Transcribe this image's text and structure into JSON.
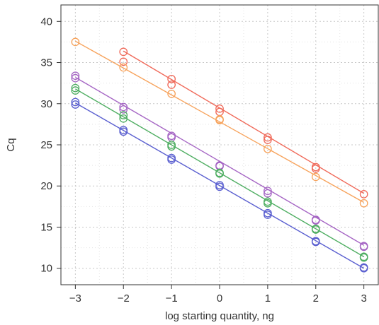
{
  "chart_data": {
    "type": "scatter",
    "xlabel": "log starting quantity, ng",
    "ylabel": "Cq",
    "xlim": [
      -3.3,
      3.3
    ],
    "ylim": [
      8,
      42
    ],
    "x_ticks": [
      -3,
      -2,
      -1,
      0,
      1,
      2,
      3
    ],
    "x_tick_labels": [
      "−3",
      "−2",
      "−1",
      "0",
      "1",
      "2",
      "3"
    ],
    "y_ticks": [
      10,
      15,
      20,
      25,
      30,
      35,
      40
    ],
    "y_tick_labels": [
      "10",
      "15",
      "20",
      "25",
      "30",
      "35",
      "40"
    ],
    "grid": true,
    "legend": "none",
    "series": [
      {
        "color": "#f06a5a",
        "fit": {
          "x": [
            -2,
            3
          ],
          "y": [
            36.4,
            19.1
          ]
        },
        "points": [
          {
            "x": -2,
            "y": 36.3
          },
          {
            "x": -2,
            "y": 35.1
          },
          {
            "x": -1,
            "y": 33.0
          },
          {
            "x": -1,
            "y": 32.3
          },
          {
            "x": 0,
            "y": 29.4
          },
          {
            "x": 0,
            "y": 29.0
          },
          {
            "x": 1,
            "y": 25.9
          },
          {
            "x": 1,
            "y": 25.6
          },
          {
            "x": 2,
            "y": 22.3
          },
          {
            "x": 2,
            "y": 22.1
          },
          {
            "x": 3,
            "y": 19.0
          }
        ]
      },
      {
        "color": "#f7a35c",
        "fit": {
          "x": [
            -3,
            3
          ],
          "y": [
            37.6,
            18.0
          ]
        },
        "points": [
          {
            "x": -3,
            "y": 37.5
          },
          {
            "x": -2,
            "y": 34.4
          },
          {
            "x": -1,
            "y": 31.2
          },
          {
            "x": 0,
            "y": 28.1
          },
          {
            "x": 0,
            "y": 28.0
          },
          {
            "x": 1,
            "y": 24.5
          },
          {
            "x": 2,
            "y": 21.1
          },
          {
            "x": 3,
            "y": 17.9
          }
        ]
      },
      {
        "color": "#a565c4",
        "fit": {
          "x": [
            -3,
            3
          ],
          "y": [
            33.2,
            12.8
          ]
        },
        "points": [
          {
            "x": -3,
            "y": 33.4
          },
          {
            "x": -3,
            "y": 33.1
          },
          {
            "x": -2,
            "y": 29.6
          },
          {
            "x": -2,
            "y": 29.3
          },
          {
            "x": -1,
            "y": 26.1
          },
          {
            "x": -1,
            "y": 25.9
          },
          {
            "x": 0,
            "y": 22.5
          },
          {
            "x": 0,
            "y": 22.4
          },
          {
            "x": 1,
            "y": 19.4
          },
          {
            "x": 1,
            "y": 19.1
          },
          {
            "x": 2,
            "y": 15.9
          },
          {
            "x": 2,
            "y": 15.8
          },
          {
            "x": 3,
            "y": 12.7
          },
          {
            "x": 3,
            "y": 12.6
          }
        ]
      },
      {
        "color": "#4fae62",
        "fit": {
          "x": [
            -3,
            3
          ],
          "y": [
            31.8,
            11.4
          ]
        },
        "points": [
          {
            "x": -3,
            "y": 31.9
          },
          {
            "x": -3,
            "y": 31.6
          },
          {
            "x": -2,
            "y": 28.6
          },
          {
            "x": -2,
            "y": 28.2
          },
          {
            "x": -1,
            "y": 25.0
          },
          {
            "x": -1,
            "y": 24.8
          },
          {
            "x": 0,
            "y": 21.6
          },
          {
            "x": 0,
            "y": 21.5
          },
          {
            "x": 1,
            "y": 18.1
          },
          {
            "x": 1,
            "y": 17.9
          },
          {
            "x": 2,
            "y": 14.8
          },
          {
            "x": 2,
            "y": 14.7
          },
          {
            "x": 3,
            "y": 11.4
          },
          {
            "x": 3,
            "y": 11.3
          }
        ]
      },
      {
        "color": "#5a5fd0",
        "fit": {
          "x": [
            -3,
            3
          ],
          "y": [
            30.1,
            10.0
          ]
        },
        "points": [
          {
            "x": -3,
            "y": 30.2
          },
          {
            "x": -3,
            "y": 29.9
          },
          {
            "x": -2,
            "y": 26.8
          },
          {
            "x": -2,
            "y": 26.6
          },
          {
            "x": -1,
            "y": 23.4
          },
          {
            "x": -1,
            "y": 23.2
          },
          {
            "x": 0,
            "y": 20.1
          },
          {
            "x": 0,
            "y": 19.9
          },
          {
            "x": 1,
            "y": 16.7
          },
          {
            "x": 1,
            "y": 16.5
          },
          {
            "x": 2,
            "y": 13.3
          },
          {
            "x": 2,
            "y": 13.2
          },
          {
            "x": 3,
            "y": 10.1
          },
          {
            "x": 3,
            "y": 10.0
          }
        ]
      }
    ]
  }
}
